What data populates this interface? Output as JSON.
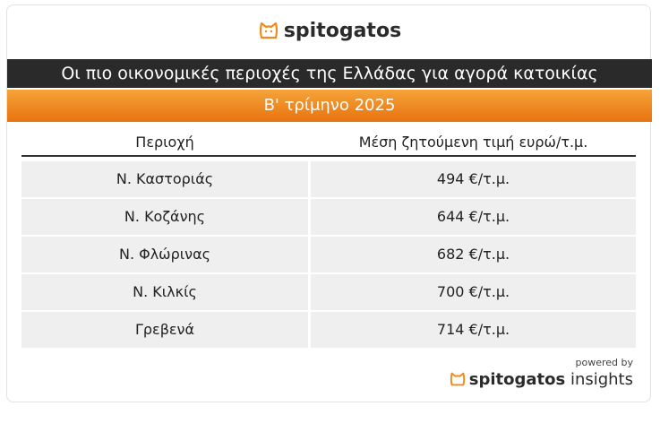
{
  "header": {
    "logo": "spitogatos",
    "title": "Οι πιο οικονομικές περιοχές της Ελλάδας για αγορά κατοικίας",
    "subtitle": "Β' τρίμηνο 2025"
  },
  "table": {
    "columns": [
      "Περιοχή",
      "Μέση ζητούμενη τιμή ευρώ/τ.μ."
    ],
    "rows": [
      [
        "Ν. Καστοριάς",
        "494 €/τ.μ."
      ],
      [
        "Ν. Κοζάνης",
        "644 €/τ.μ."
      ],
      [
        "Ν. Φλώρινας",
        "682 €/τ.μ."
      ],
      [
        "Ν. Κιλκίς",
        "700 €/τ.μ."
      ],
      [
        "Γρεβενά",
        "714 €/τ.μ."
      ]
    ]
  },
  "footer": {
    "powered_by": "powered by",
    "brand": "spitogatos",
    "brand_suffix": "insights"
  }
}
